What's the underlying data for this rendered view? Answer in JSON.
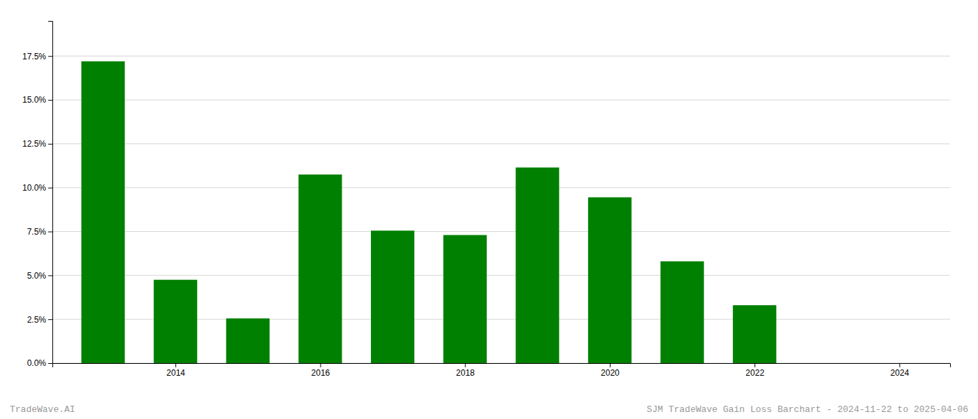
{
  "chart_data": {
    "type": "bar",
    "x": [
      2013,
      2014,
      2015,
      2016,
      2017,
      2018,
      2019,
      2020,
      2021,
      2022,
      2023
    ],
    "values": [
      0.172,
      0.0475,
      0.0255,
      0.1075,
      0.0755,
      0.073,
      0.1115,
      0.0945,
      0.058,
      0.033,
      0.0
    ],
    "color": "#008000",
    "xlim": [
      2012.3,
      2024.7
    ],
    "xticks": [
      2014,
      2016,
      2018,
      2020,
      2022,
      2024
    ],
    "ylim": [
      0.0,
      0.195
    ],
    "yticks": [
      {
        "value": 0.0,
        "label": "0.0%"
      },
      {
        "value": 0.025,
        "label": "2.5%"
      },
      {
        "value": 0.05,
        "label": "5.0%"
      },
      {
        "value": 0.075,
        "label": "7.5%"
      },
      {
        "value": 0.1,
        "label": "10.0%"
      },
      {
        "value": 0.125,
        "label": "12.5%"
      },
      {
        "value": 0.15,
        "label": "15.0%"
      },
      {
        "value": 0.175,
        "label": "17.5%"
      }
    ],
    "grid": true,
    "annotations": [
      "TradeWave.AI",
      "SJM TradeWave Gain Loss Barchart - 2024-11-22 to 2025-04-06"
    ]
  }
}
